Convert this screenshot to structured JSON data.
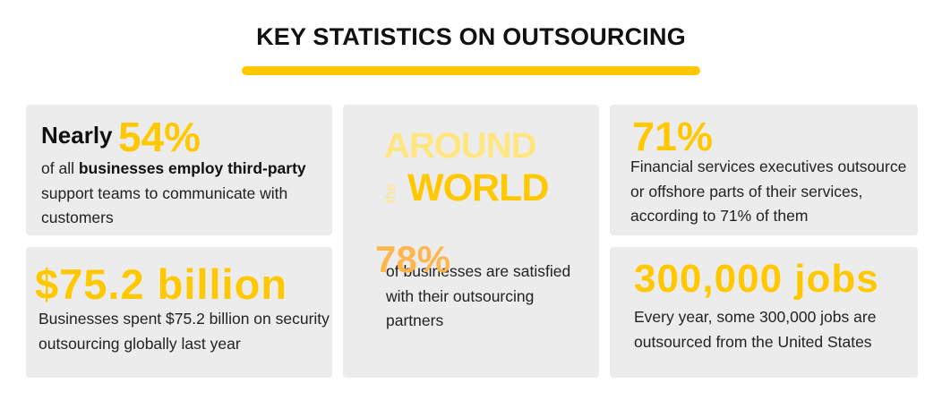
{
  "page": {
    "title": "KEY STATISTICS ON OUTSOURCING",
    "accent_color": "#ffc800"
  },
  "stats": {
    "businesses": {
      "lead": "Nearly",
      "value": "54%",
      "text_pre": "of all ",
      "text_bold": "businesses employ third-party",
      "text_post": " support teams to communicate with customers"
    },
    "security": {
      "value": "$75.2 billion",
      "text": "Businesses spent $75.2 billion on security outsourcing globally last year"
    },
    "world": {
      "around": "AROUND",
      "the": "the",
      "world": "WORLD",
      "value": "78%",
      "text": "of businesses are satisfied with their outsourcing partners"
    },
    "financial": {
      "value": "71%",
      "text": "Financial services executives outsource or offshore parts of their services, according to 71% of them"
    },
    "jobs": {
      "value": "300,000 jobs",
      "text": "Every year, some 300,000 jobs are outsourced from the United States"
    }
  }
}
